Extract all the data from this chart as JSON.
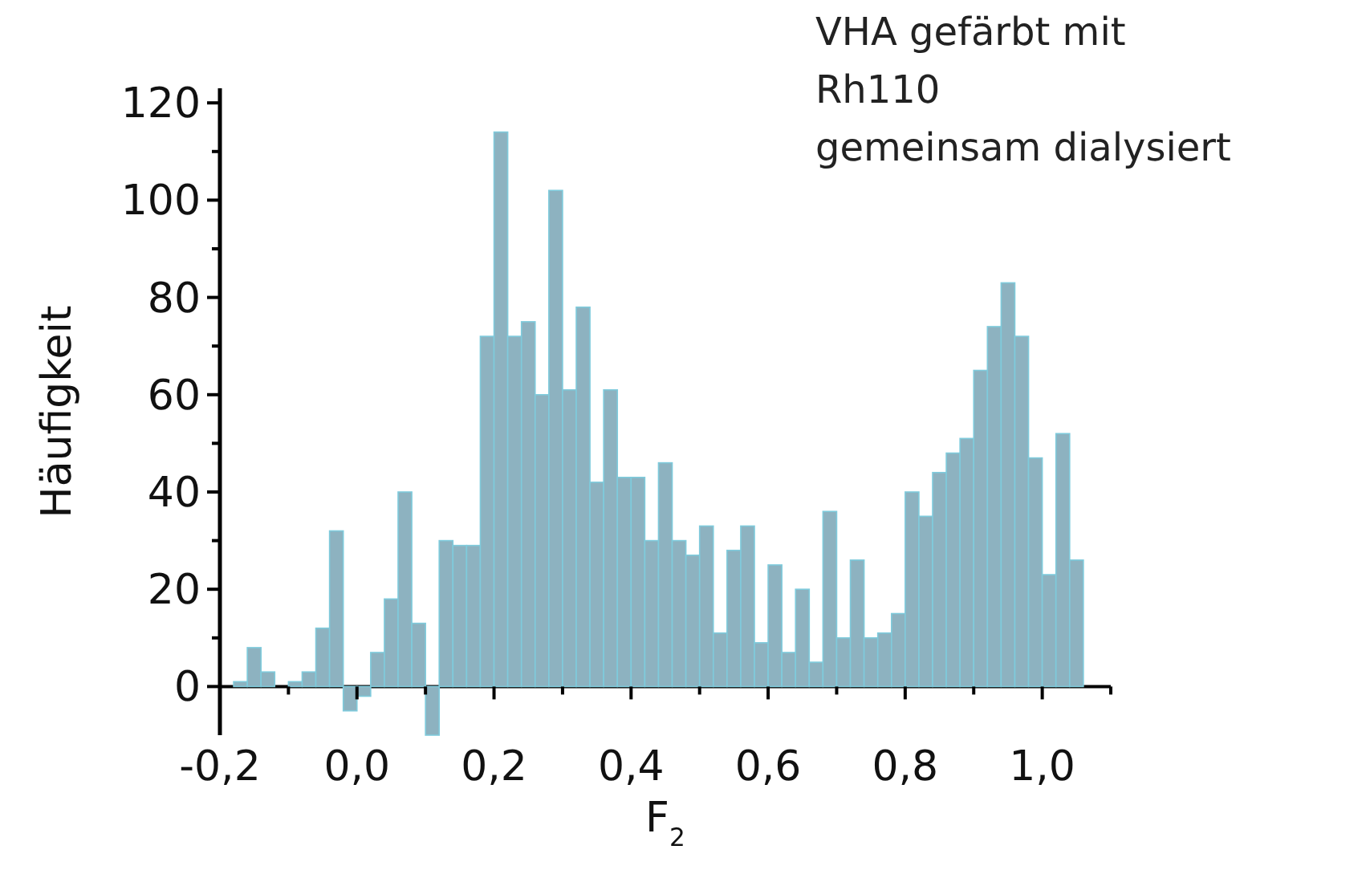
{
  "chart_data": {
    "type": "histogram",
    "bins": [
      -0.18,
      -0.16,
      -0.14,
      -0.12,
      -0.1,
      -0.08,
      -0.06,
      -0.04,
      -0.02,
      0,
      0.02,
      0.04,
      0.06,
      0.08,
      0.1,
      0.12,
      0.14,
      0.16,
      0.18,
      0.2,
      0.22,
      0.24,
      0.26,
      0.28,
      0.3,
      0.32,
      0.34,
      0.36,
      0.38,
      0.4,
      0.42,
      0.44,
      0.46,
      0.48,
      0.5,
      0.52,
      0.54,
      0.56,
      0.58,
      0.6,
      0.62,
      0.64,
      0.66,
      0.68,
      0.7,
      0.72,
      0.74,
      0.76,
      0.78,
      0.8,
      0.82,
      0.84,
      0.86,
      0.88,
      0.9,
      0.92,
      0.94,
      0.96,
      0.98,
      1,
      1.02,
      1.04,
      1.06
    ],
    "values": [
      1,
      8,
      3,
      0,
      1,
      3,
      12,
      32,
      -5,
      -2,
      7,
      18,
      40,
      13,
      -10,
      30,
      29,
      29,
      72,
      114,
      72,
      75,
      60,
      102,
      61,
      78,
      42,
      61,
      43,
      43,
      30,
      46,
      30,
      27,
      33,
      11,
      28,
      33,
      9,
      25,
      7,
      20,
      5,
      36,
      10,
      26,
      10,
      11,
      15,
      40,
      35,
      44,
      48,
      51,
      65,
      74,
      83,
      72,
      47,
      23,
      52,
      26
    ],
    "color": "#8db2c0",
    "xlabel": "F$_{2}$",
    "ylabel": "Häufigkeit",
    "annotations": [
      "VHA gefärbt mit\nRh110\ngemeinsam dialysiert"
    ],
    "xlim": [
      -0.2,
      1.1
    ],
    "xticks": [
      {
        "value": -0.2,
        "label": "-0,2"
      },
      {
        "value": -0.1,
        "label": null
      },
      {
        "value": 0,
        "label": "0,0"
      },
      {
        "value": 0.1,
        "label": null
      },
      {
        "value": 0.2,
        "label": "0,2"
      },
      {
        "value": 0.3,
        "label": null
      },
      {
        "value": 0.4,
        "label": "0,4"
      },
      {
        "value": 0.5,
        "label": null
      },
      {
        "value": 0.6,
        "label": "0,6"
      },
      {
        "value": 0.7,
        "label": null
      },
      {
        "value": 0.8,
        "label": "0,8"
      },
      {
        "value": 0.9,
        "label": null
      },
      {
        "value": 1.0,
        "label": "1,0"
      },
      {
        "value": 1.1,
        "label": null
      }
    ],
    "ylim": [
      -10,
      123
    ],
    "yticks": [
      0,
      {
        "value": 10,
        "label": null
      },
      20,
      {
        "value": 30,
        "label": null
      },
      40,
      {
        "value": 50,
        "label": null
      },
      60,
      {
        "value": 70,
        "label": null
      },
      80,
      {
        "value": 90,
        "label": null
      },
      100,
      {
        "value": 110,
        "label": null
      },
      120
    ],
    "grid": false
  }
}
